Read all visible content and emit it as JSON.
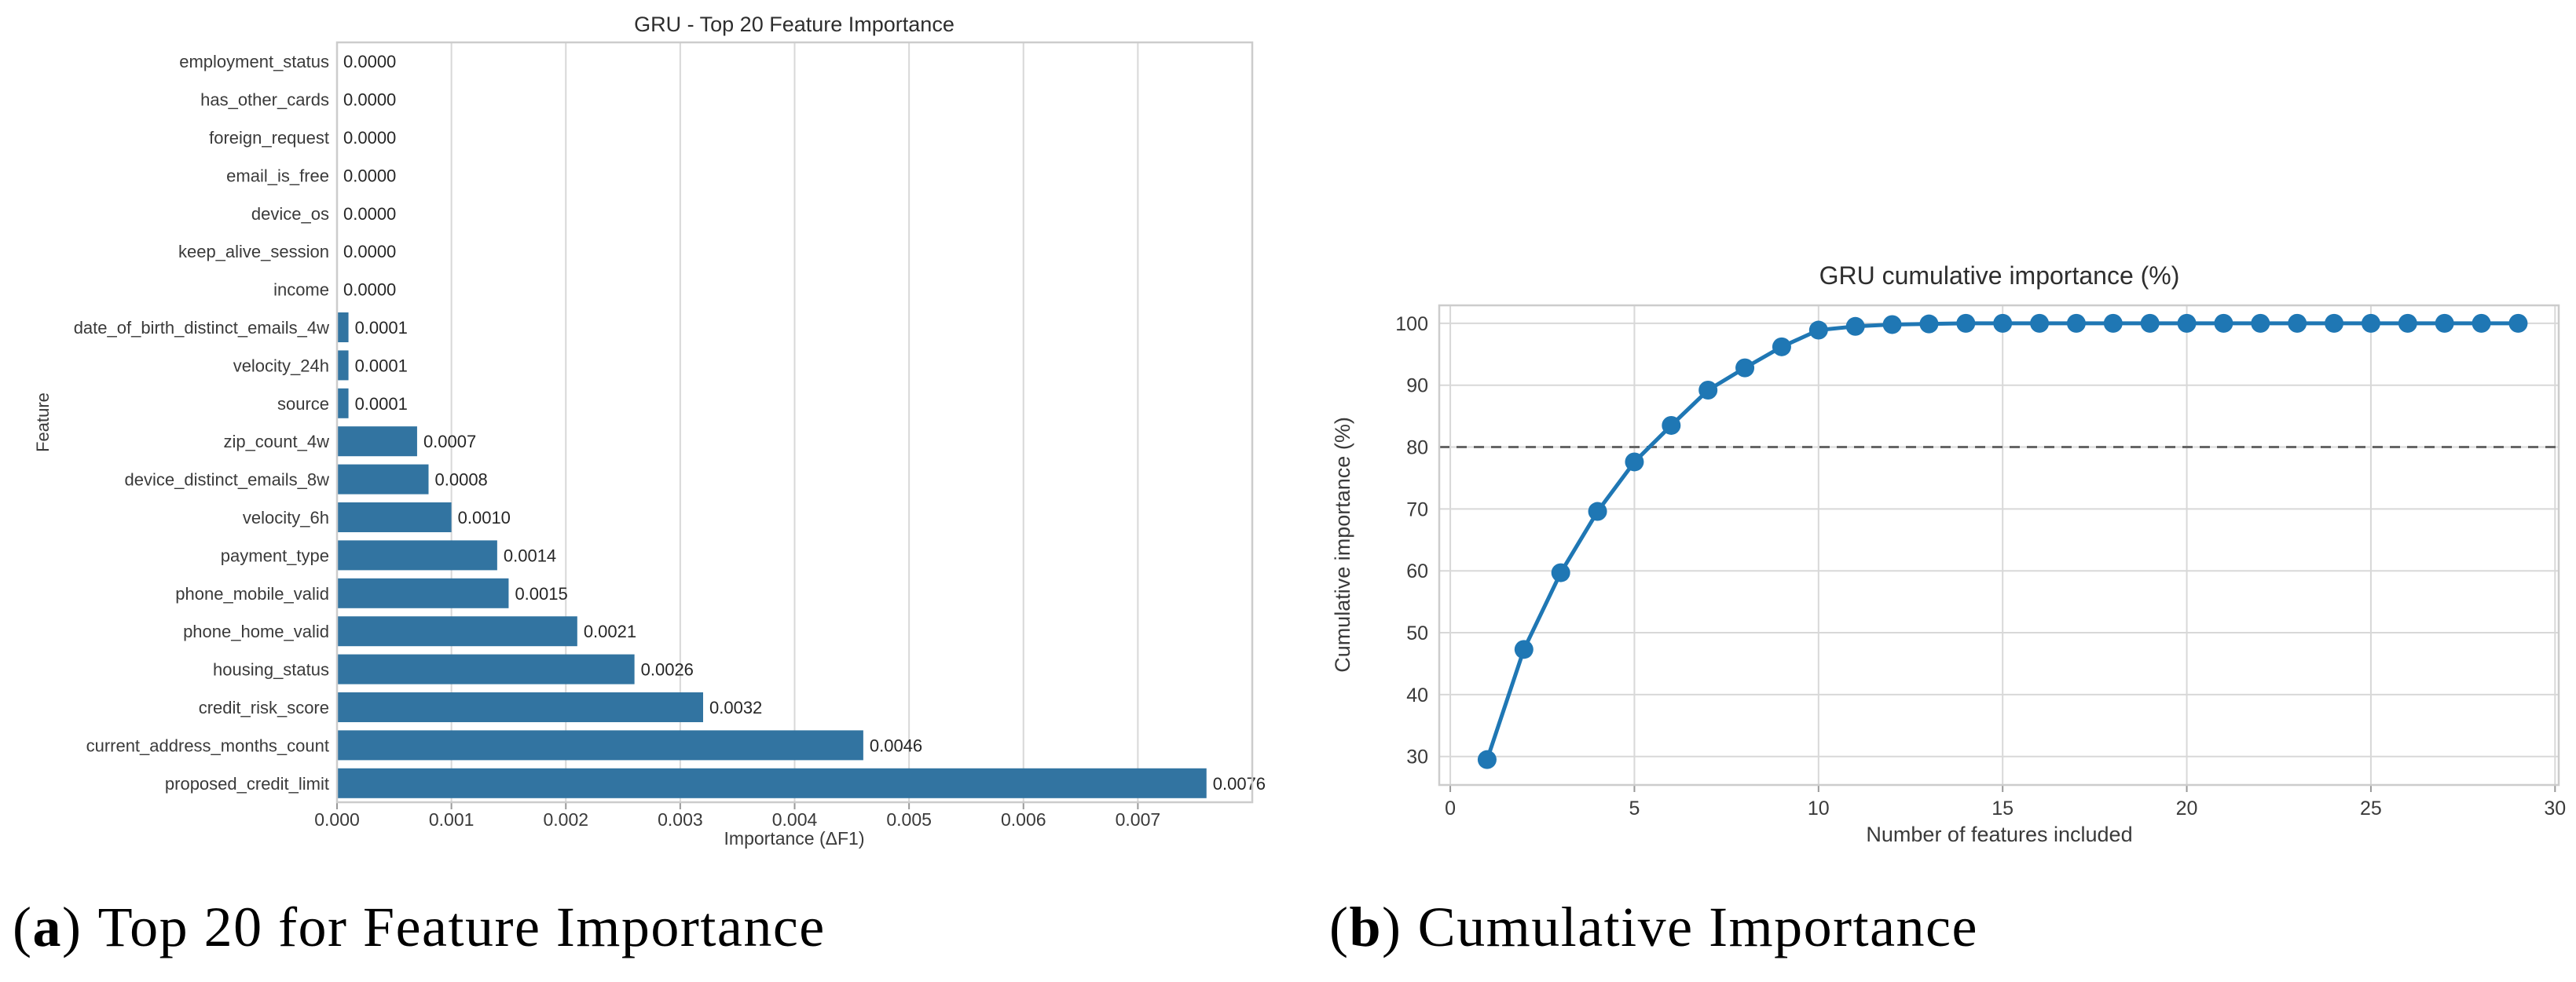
{
  "colors": {
    "bar": "#3274a1",
    "line": "#1f77b4",
    "grid": "#d8d8d8",
    "spine": "#cccccc",
    "tick": "#999999",
    "text": "#3a3a3a",
    "label": "#262626",
    "dashed": "#666666",
    "title": "#2e2e2e"
  },
  "captions": {
    "a": {
      "open": "(",
      "letter": "a",
      "close": ")",
      "text": "Top 20 for Feature Importance"
    },
    "b": {
      "open": "(",
      "letter": "b",
      "close": ")",
      "text": "Cumulative Importance"
    }
  },
  "chart_data": [
    {
      "id": "gru-top20-feature-importance",
      "type": "bar",
      "orientation": "horizontal",
      "title": "GRU - Top 20 Feature Importance",
      "xlabel": "Importance (ΔF1)",
      "ylabel": "Feature",
      "categories": [
        "employment_status",
        "has_other_cards",
        "foreign_request",
        "email_is_free",
        "device_os",
        "keep_alive_session",
        "income",
        "date_of_birth_distinct_emails_4w",
        "velocity_24h",
        "source",
        "zip_count_4w",
        "device_distinct_emails_8w",
        "velocity_6h",
        "payment_type",
        "phone_mobile_valid",
        "phone_home_valid",
        "housing_status",
        "credit_risk_score",
        "current_address_months_count",
        "proposed_credit_limit"
      ],
      "values": [
        0.0,
        0.0,
        0.0,
        0.0,
        0.0,
        0.0,
        0.0,
        0.0001,
        0.0001,
        0.0001,
        0.0007,
        0.0008,
        0.001,
        0.0014,
        0.0015,
        0.0021,
        0.0026,
        0.0032,
        0.0046,
        0.0076
      ],
      "value_labels": [
        "0.0000",
        "0.0000",
        "0.0000",
        "0.0000",
        "0.0000",
        "0.0000",
        "0.0000",
        "0.0001",
        "0.0001",
        "0.0001",
        "0.0007",
        "0.0008",
        "0.0010",
        "0.0014",
        "0.0015",
        "0.0021",
        "0.0026",
        "0.0032",
        "0.0046",
        "0.0076"
      ],
      "x_ticks": [
        "0.000",
        "0.001",
        "0.002",
        "0.003",
        "0.004",
        "0.005",
        "0.006",
        "0.007"
      ],
      "x_tick_values": [
        0,
        0.001,
        0.002,
        0.003,
        0.004,
        0.005,
        0.006,
        0.007
      ],
      "xlim": [
        0,
        0.008
      ],
      "grid": "vertical",
      "bar_color": "#3274a1"
    },
    {
      "id": "gru-cumulative-importance",
      "type": "line",
      "title": "GRU cumulative importance (%)",
      "xlabel": "Number of features included",
      "ylabel": "Cumulative importance (%)",
      "x": [
        1,
        2,
        3,
        4,
        5,
        6,
        7,
        8,
        9,
        10,
        11,
        12,
        13,
        14,
        15,
        16,
        17,
        18,
        19,
        20,
        21,
        22,
        23,
        24,
        25,
        26,
        27,
        28,
        29
      ],
      "y": [
        29.5,
        47.3,
        59.7,
        69.6,
        77.6,
        83.5,
        89.2,
        92.8,
        96.2,
        98.9,
        99.5,
        99.8,
        99.9,
        100,
        100,
        100,
        100,
        100,
        100,
        100,
        100,
        100,
        100,
        100,
        100,
        100,
        100,
        100,
        100
      ],
      "x_ticks": [
        0,
        5,
        10,
        15,
        20,
        25,
        30
      ],
      "y_ticks": [
        30,
        40,
        50,
        60,
        70,
        80,
        90,
        100
      ],
      "xlim": [
        -0.3,
        30.1
      ],
      "ylim": [
        25.4,
        102.9
      ],
      "reference_line_y": 80,
      "grid": "both",
      "legend": "none",
      "marker": "circle",
      "line_color": "#1f77b4"
    }
  ]
}
